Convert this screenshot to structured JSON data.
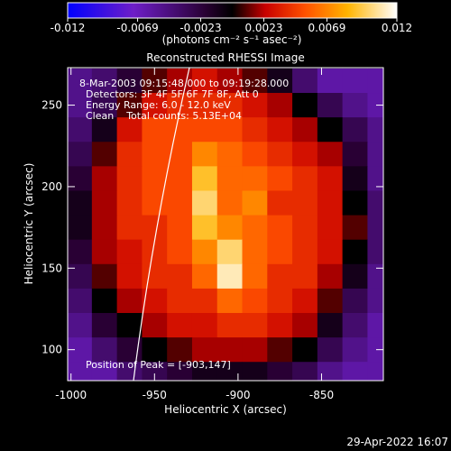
{
  "chart_data": {
    "type": "heatmap",
    "title": "Reconstructed RHESSI Image",
    "xlabel": "Heliocentric X (arcsec)",
    "ylabel": "Heliocentric Y (arcsec)",
    "xlim": [
      -1002,
      -813
    ],
    "ylim": [
      81,
      273
    ],
    "xticks": [
      -1000,
      -950,
      -900,
      -850
    ],
    "yticks": [
      100,
      150,
      200,
      250
    ],
    "x": [
      -995,
      -980,
      -965,
      -950,
      -935,
      -920,
      -905,
      -890,
      -875,
      -860,
      -845,
      -830,
      -815
    ],
    "y": [
      265,
      250,
      235,
      220,
      205,
      190,
      175,
      160,
      145,
      130,
      115,
      100,
      85
    ],
    "z": [
      [
        -0.005,
        -0.004,
        -0.002,
        0.001,
        0.002,
        0.003,
        0.002,
        0.001,
        -0.001,
        -0.004,
        -0.006,
        -0.006,
        -0.006
      ],
      [
        -0.005,
        -0.003,
        0.001,
        0.003,
        0.004,
        0.004,
        0.004,
        0.003,
        0.002,
        0.0,
        -0.003,
        -0.005,
        -0.006
      ],
      [
        -0.004,
        -0.001,
        0.003,
        0.005,
        0.005,
        0.005,
        0.005,
        0.004,
        0.003,
        0.002,
        0.0,
        -0.003,
        -0.005
      ],
      [
        -0.003,
        0.001,
        0.004,
        0.005,
        0.005,
        0.007,
        0.006,
        0.005,
        0.004,
        0.003,
        0.002,
        -0.002,
        -0.005
      ],
      [
        -0.002,
        0.002,
        0.004,
        0.005,
        0.005,
        0.009,
        0.006,
        0.006,
        0.005,
        0.004,
        0.003,
        -0.001,
        -0.005
      ],
      [
        -0.001,
        0.002,
        0.004,
        0.005,
        0.005,
        0.01,
        0.006,
        0.007,
        0.004,
        0.004,
        0.003,
        0.0,
        -0.004
      ],
      [
        -0.001,
        0.002,
        0.004,
        0.004,
        0.005,
        0.009,
        0.007,
        0.006,
        0.005,
        0.004,
        0.003,
        0.001,
        -0.004
      ],
      [
        -0.002,
        0.002,
        0.003,
        0.004,
        0.005,
        0.007,
        0.01,
        0.006,
        0.005,
        0.004,
        0.003,
        0.0,
        -0.004
      ],
      [
        -0.003,
        0.001,
        0.003,
        0.004,
        0.004,
        0.006,
        0.011,
        0.006,
        0.004,
        0.004,
        0.002,
        -0.001,
        -0.005
      ],
      [
        -0.004,
        0.0,
        0.002,
        0.003,
        0.004,
        0.004,
        0.006,
        0.005,
        0.004,
        0.003,
        0.001,
        -0.003,
        -0.005
      ],
      [
        -0.005,
        -0.002,
        0.0,
        0.002,
        0.003,
        0.003,
        0.004,
        0.004,
        0.003,
        0.002,
        -0.001,
        -0.004,
        -0.006
      ],
      [
        -0.006,
        -0.004,
        -0.002,
        0.0,
        0.001,
        0.002,
        0.002,
        0.002,
        0.001,
        0.0,
        -0.003,
        -0.005,
        -0.006
      ],
      [
        -0.006,
        -0.006,
        -0.004,
        -0.003,
        -0.002,
        -0.001,
        -0.001,
        -0.001,
        -0.002,
        -0.003,
        -0.005,
        -0.006,
        -0.006
      ]
    ],
    "colorbar": {
      "zlim": [
        -0.012,
        0.012
      ],
      "ticks": [
        -0.012,
        -0.0069,
        -0.0023,
        0.0023,
        0.0069,
        0.012
      ],
      "label": "(photons cm⁻² s⁻¹ asec⁻²)"
    },
    "annotations": [
      "8-Mar-2003 09:15:48.000 to 09:19:28.000",
      "Detectors: 3F 4F 5F 6F 7F 8F, Att 0",
      "Energy Range: 6.0 - 12.0 keV",
      "Clean    Total counts: 5.13E+04"
    ],
    "peak_note": "Position of Peak = [-903,147]",
    "timestamp": "29-Apr-2022 16:07"
  }
}
